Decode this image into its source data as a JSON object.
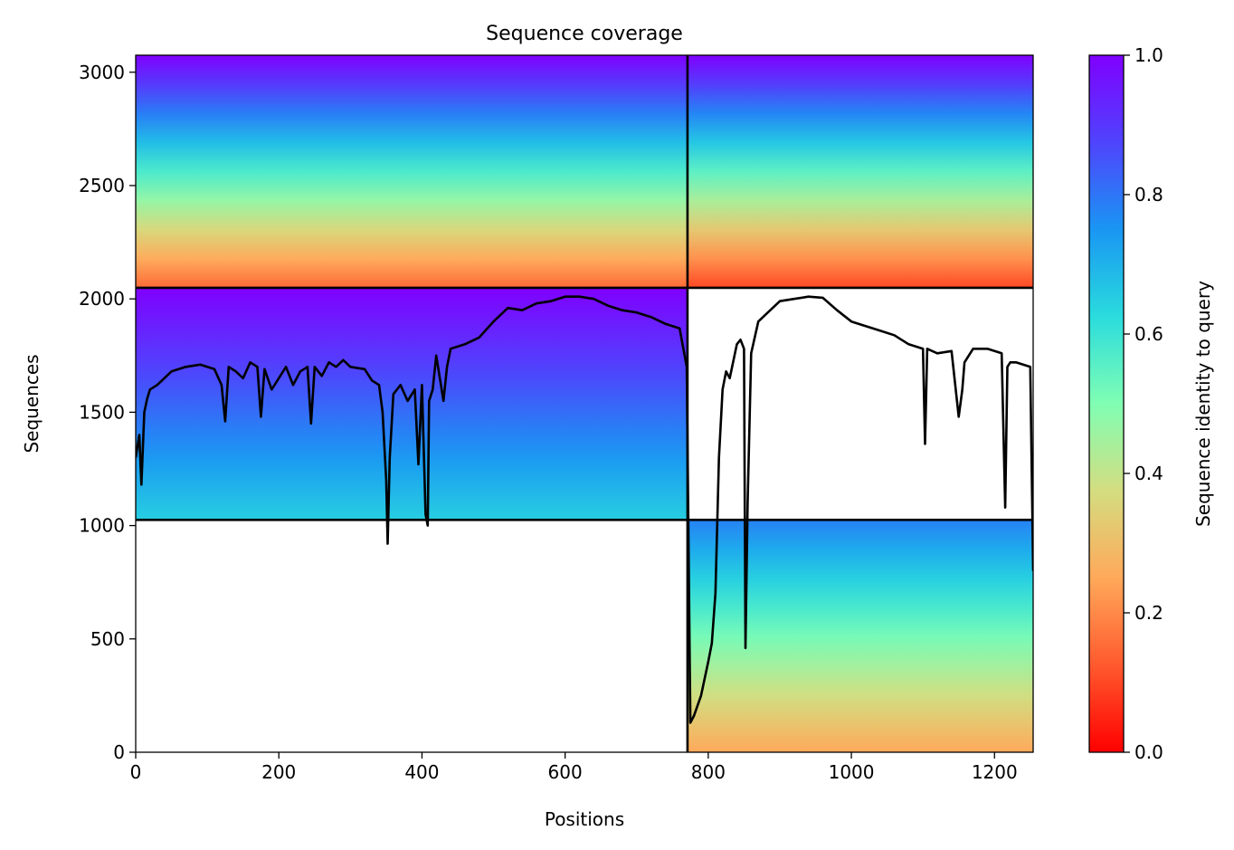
{
  "chart_data": {
    "type": "heatmap",
    "title": "Sequence coverage",
    "xlabel": "Positions",
    "ylabel": "Sequences",
    "xlim": [
      0,
      1254
    ],
    "ylim": [
      0,
      3075
    ],
    "xticks": [
      0,
      200,
      400,
      600,
      800,
      1000,
      1200
    ],
    "yticks": [
      0,
      500,
      1000,
      1500,
      2000,
      2500,
      3000
    ],
    "colorbar": {
      "label": "Sequence identity to query",
      "range": [
        0,
        1
      ],
      "ticks": [
        "0.0",
        "0.2",
        "0.4",
        "0.6",
        "0.8",
        "1.0"
      ],
      "colormap": "rainbow_r"
    },
    "chain_breaks": {
      "x": [
        771
      ],
      "y": [
        1025,
        2049
      ]
    },
    "blocks": [
      {
        "x": [
          0,
          771
        ],
        "y": [
          2049,
          3075
        ],
        "identity_top": 1.0,
        "identity_bottom": 0.15
      },
      {
        "x": [
          771,
          1254
        ],
        "y": [
          2049,
          3075
        ],
        "identity_top": 1.0,
        "identity_bottom": 0.1
      },
      {
        "x": [
          0,
          771
        ],
        "y": [
          1025,
          2049
        ],
        "identity_top": 1.0,
        "identity_bottom": 0.65
      },
      {
        "x": [
          771,
          1254
        ],
        "y": [
          0,
          1025
        ],
        "identity_top": 0.78,
        "identity_bottom": 0.25
      }
    ],
    "coverage_line": {
      "x": [
        0,
        5,
        8,
        12,
        16,
        20,
        30,
        50,
        70,
        90,
        110,
        120,
        125,
        130,
        140,
        150,
        160,
        170,
        175,
        180,
        190,
        200,
        210,
        220,
        230,
        240,
        245,
        250,
        260,
        270,
        280,
        290,
        300,
        320,
        330,
        340,
        345,
        350,
        352,
        355,
        360,
        370,
        380,
        390,
        395,
        400,
        405,
        408,
        410,
        415,
        420,
        430,
        435,
        440,
        460,
        480,
        500,
        520,
        540,
        560,
        580,
        600,
        620,
        640,
        660,
        680,
        700,
        720,
        740,
        760,
        770,
        775,
        780,
        790,
        800,
        805,
        810,
        815,
        820,
        825,
        830,
        840,
        845,
        850,
        852,
        855,
        860,
        870,
        880,
        900,
        920,
        940,
        960,
        980,
        1000,
        1020,
        1040,
        1060,
        1080,
        1100,
        1103,
        1106,
        1120,
        1140,
        1150,
        1155,
        1158,
        1170,
        1190,
        1210,
        1215,
        1218,
        1222,
        1230,
        1240,
        1250,
        1254
      ],
      "y": [
        1300,
        1400,
        1180,
        1500,
        1560,
        1600,
        1620,
        1680,
        1700,
        1710,
        1690,
        1620,
        1460,
        1700,
        1680,
        1650,
        1720,
        1700,
        1480,
        1690,
        1600,
        1650,
        1700,
        1620,
        1680,
        1700,
        1450,
        1700,
        1660,
        1720,
        1700,
        1730,
        1700,
        1690,
        1640,
        1620,
        1500,
        1200,
        920,
        1300,
        1580,
        1620,
        1550,
        1600,
        1270,
        1620,
        1050,
        1000,
        1550,
        1600,
        1750,
        1550,
        1700,
        1780,
        1800,
        1830,
        1900,
        1960,
        1950,
        1980,
        1990,
        2010,
        2010,
        2000,
        1970,
        1950,
        1940,
        1920,
        1890,
        1870,
        1700,
        130,
        160,
        250,
        400,
        480,
        700,
        1300,
        1600,
        1680,
        1650,
        1800,
        1820,
        1780,
        460,
        1100,
        1760,
        1900,
        1930,
        1990,
        2000,
        2010,
        2005,
        1950,
        1900,
        1880,
        1860,
        1840,
        1800,
        1780,
        1360,
        1780,
        1760,
        1770,
        1480,
        1600,
        1720,
        1780,
        1780,
        1760,
        1080,
        1700,
        1720,
        1720,
        1710,
        1700,
        800
      ]
    }
  }
}
